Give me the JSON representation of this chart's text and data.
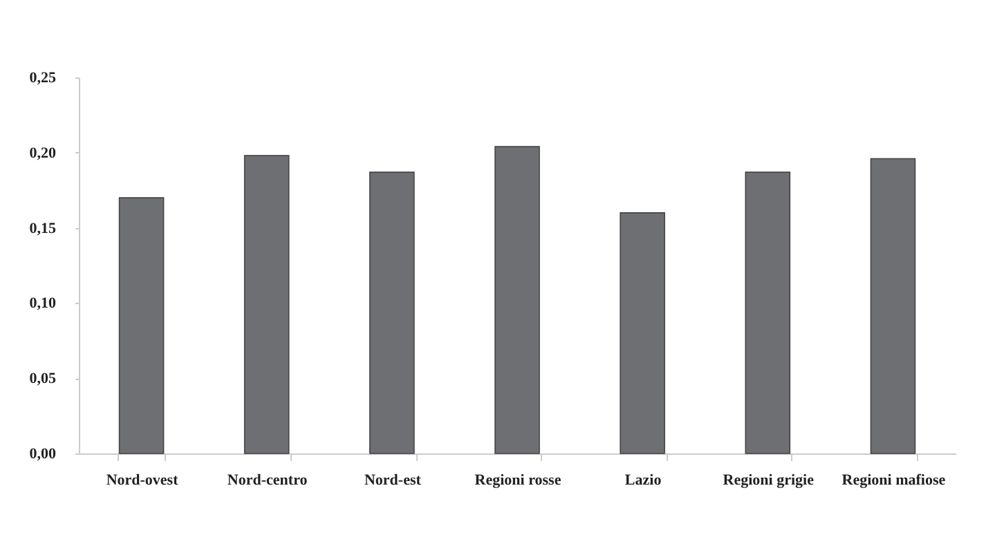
{
  "chart_data": {
    "type": "bar",
    "categories": [
      "Nord-ovest",
      "Nord-centro",
      "Nord-est",
      "Regioni rosse",
      "Lazio",
      "Regioni grigie",
      "Regioni mafiose"
    ],
    "values": [
      0.17,
      0.198,
      0.187,
      0.204,
      0.16,
      0.187,
      0.196
    ],
    "color": "#6e6f73",
    "ylim": [
      0,
      0.25
    ],
    "yticks": [
      {
        "value": 0,
        "label": "0,00"
      },
      {
        "value": 0.05,
        "label": "0,05"
      },
      {
        "value": 0.1,
        "label": "0,10"
      },
      {
        "value": 0.15,
        "label": "0,15"
      },
      {
        "value": 0.2,
        "label": "0,20"
      },
      {
        "value": 0.25,
        "label": "0,25"
      }
    ],
    "grid": false
  }
}
